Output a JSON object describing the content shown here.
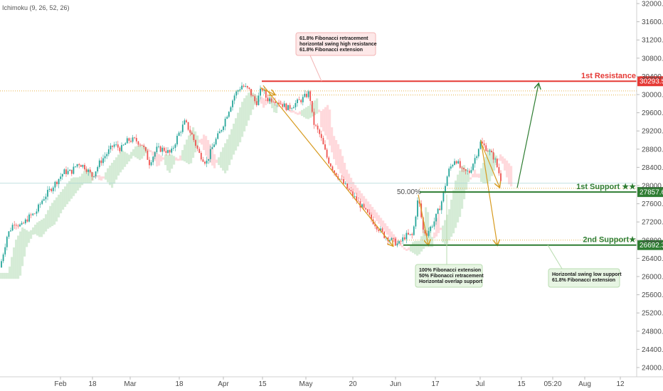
{
  "indicator_label": "Ichimoku (9, 26, 52, 26)",
  "colors": {
    "up": "#26a69a",
    "down": "#ef5350",
    "resistance": "#e53935",
    "support": "#2e7d32",
    "arrow_orange": "#d79a1e",
    "cloud_green": "#c8e6c9",
    "cloud_red": "#ffcdd2"
  },
  "chart_data": {
    "type": "candlestick",
    "x_tick_labels": [
      "Feb",
      "18",
      "Mar",
      "18",
      "Apr",
      "15",
      "May",
      "20",
      "Jun",
      "17",
      "Jul",
      "15",
      "05:20",
      "Aug",
      "12"
    ],
    "y_tick_labels": [
      "32000.0",
      "31600.0",
      "31200.0",
      "30800.0",
      "30400.0",
      "30000.0",
      "29600.0",
      "29200.0",
      "28800.0",
      "28400.0",
      "28000.0",
      "27600.0",
      "27200.0",
      "26800.0",
      "26400.0",
      "26000.0",
      "25600.0",
      "25200.0",
      "24800.0",
      "24400.0",
      "24000.0"
    ],
    "ylim": [
      23900,
      32100
    ],
    "price_path": [
      [
        0,
        26200
      ],
      [
        10,
        26900
      ],
      [
        20,
        27200
      ],
      [
        30,
        27100
      ],
      [
        40,
        27300
      ],
      [
        50,
        27400
      ],
      [
        60,
        27700
      ],
      [
        70,
        27900
      ],
      [
        80,
        28100
      ],
      [
        90,
        28300
      ],
      [
        100,
        28300
      ],
      [
        110,
        28500
      ],
      [
        120,
        28400
      ],
      [
        130,
        28200
      ],
      [
        140,
        28500
      ],
      [
        150,
        28700
      ],
      [
        160,
        28900
      ],
      [
        170,
        28800
      ],
      [
        180,
        29000
      ],
      [
        190,
        29000
      ],
      [
        200,
        28900
      ],
      [
        210,
        28500
      ],
      [
        220,
        28800
      ],
      [
        230,
        28800
      ],
      [
        240,
        28700
      ],
      [
        250,
        29100
      ],
      [
        260,
        29400
      ],
      [
        270,
        29100
      ],
      [
        280,
        28700
      ],
      [
        290,
        28500
      ],
      [
        300,
        28900
      ],
      [
        310,
        29200
      ],
      [
        320,
        29600
      ],
      [
        330,
        30000
      ],
      [
        340,
        30200
      ],
      [
        350,
        30100
      ],
      [
        360,
        29800
      ],
      [
        368,
        30150
      ],
      [
        375,
        29900
      ],
      [
        385,
        29900
      ],
      [
        395,
        29800
      ],
      [
        405,
        29700
      ],
      [
        415,
        29800
      ],
      [
        425,
        29900
      ],
      [
        435,
        30050
      ],
      [
        440,
        29400
      ],
      [
        450,
        29100
      ],
      [
        460,
        28600
      ],
      [
        470,
        28300
      ],
      [
        480,
        28100
      ],
      [
        490,
        27900
      ],
      [
        500,
        27700
      ],
      [
        510,
        27500
      ],
      [
        520,
        27300
      ],
      [
        530,
        27100
      ],
      [
        540,
        26900
      ],
      [
        550,
        26800
      ],
      [
        560,
        26700
      ],
      [
        570,
        26900
      ],
      [
        580,
        26900
      ],
      [
        588,
        27750
      ],
      [
        595,
        27000
      ],
      [
        600,
        26950
      ],
      [
        610,
        27200
      ],
      [
        620,
        27600
      ],
      [
        630,
        28300
      ],
      [
        640,
        28600
      ],
      [
        650,
        28300
      ],
      [
        660,
        28300
      ],
      [
        670,
        28700
      ],
      [
        675,
        28950
      ],
      [
        685,
        28800
      ],
      [
        695,
        28600
      ],
      [
        705,
        28100
      ]
    ],
    "levels": [
      {
        "name": "1st Resistance",
        "value": 30293.5,
        "badge": "30293.5"
      },
      {
        "name": "1st Support ★★",
        "value": 27857.6,
        "badge": "27857.6"
      },
      {
        "name": "2nd Support★",
        "value": 26692.3,
        "badge": "26692.3"
      }
    ],
    "fib_label": "50.00%",
    "annotations": [
      {
        "lines": [
          "61.8% Fibonacci retracement",
          "horizontal swing high resistance",
          "61.8% Fibonacci extension"
        ]
      },
      {
        "lines": [
          "100% Fibonacci extension",
          "50% Fibonacci retracement",
          "Horizontal overlap support"
        ]
      },
      {
        "lines": [
          "Horizontal swing low support",
          "61.8% Fibonacci extension"
        ]
      }
    ]
  }
}
